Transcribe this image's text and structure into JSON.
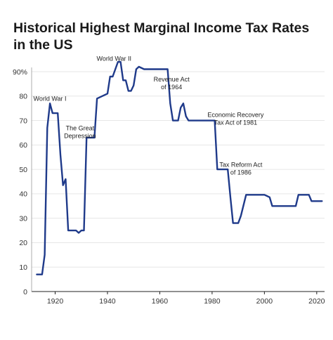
{
  "chart_data": {
    "type": "line",
    "title": "Historical Highest Marginal Income Tax Rates in the US",
    "xlabel": "",
    "ylabel": "",
    "xlim": [
      1911,
      2023
    ],
    "ylim": [
      0,
      90
    ],
    "grid": true,
    "line_color": "#1f3a8a",
    "x_ticks": [
      1920,
      1940,
      1960,
      1980,
      2000,
      2020
    ],
    "x_tick_labels": [
      "1920",
      "1940",
      "1960",
      "1980",
      "2000",
      "2020"
    ],
    "y_ticks": [
      0,
      10,
      20,
      30,
      40,
      50,
      60,
      70,
      80,
      90
    ],
    "y_tick_labels": [
      "0",
      "10",
      "20",
      "30",
      "40",
      "50",
      "60",
      "70",
      "80",
      "90%"
    ],
    "series": [
      {
        "x": [
          1913,
          1915,
          1916,
          1917,
          1918,
          1919,
          1920,
          1921,
          1922,
          1923,
          1924,
          1925,
          1926,
          1927,
          1928,
          1929,
          1930,
          1931,
          1932,
          1935,
          1936,
          1940,
          1941,
          1942,
          1944,
          1945,
          1946,
          1947,
          1948,
          1949,
          1950,
          1951,
          1952,
          1954,
          1963,
          1964,
          1965,
          1967,
          1968,
          1969,
          1970,
          1971,
          1981,
          1982,
          1986,
          1987,
          1988,
          1990,
          1991,
          1993,
          2000,
          2001,
          2002,
          2003,
          2012,
          2013,
          2017,
          2018,
          2022
        ],
        "y": [
          7,
          7,
          15,
          67,
          77,
          73,
          73,
          73,
          56,
          43.5,
          46,
          25,
          25,
          25,
          25,
          24,
          25,
          25,
          63,
          63,
          79,
          81,
          88,
          88,
          94,
          94,
          86.45,
          86.45,
          82.13,
          82.13,
          84.36,
          91,
          92,
          91,
          91,
          77,
          70,
          70,
          75.25,
          77,
          71.75,
          70,
          70,
          50,
          50,
          38.5,
          28,
          28,
          31,
          39.6,
          39.6,
          39.1,
          38.6,
          35,
          35,
          39.6,
          39.6,
          37,
          37
        ]
      }
    ],
    "annotations": [
      {
        "text": "World War I",
        "x": 1918,
        "y": 78
      },
      {
        "text": "The Great\nDepression",
        "x": 1929.5,
        "y": 66
      },
      {
        "text": "World War II",
        "x": 1942.5,
        "y": 94.5
      },
      {
        "text": "Revenue Act\nof 1964",
        "x": 1964.5,
        "y": 86
      },
      {
        "text": "Economic Recovery\nTax Act of 1981",
        "x": 1989,
        "y": 71.5
      },
      {
        "text": "Tax Reform Act\nof 1986",
        "x": 1991,
        "y": 51
      }
    ]
  }
}
